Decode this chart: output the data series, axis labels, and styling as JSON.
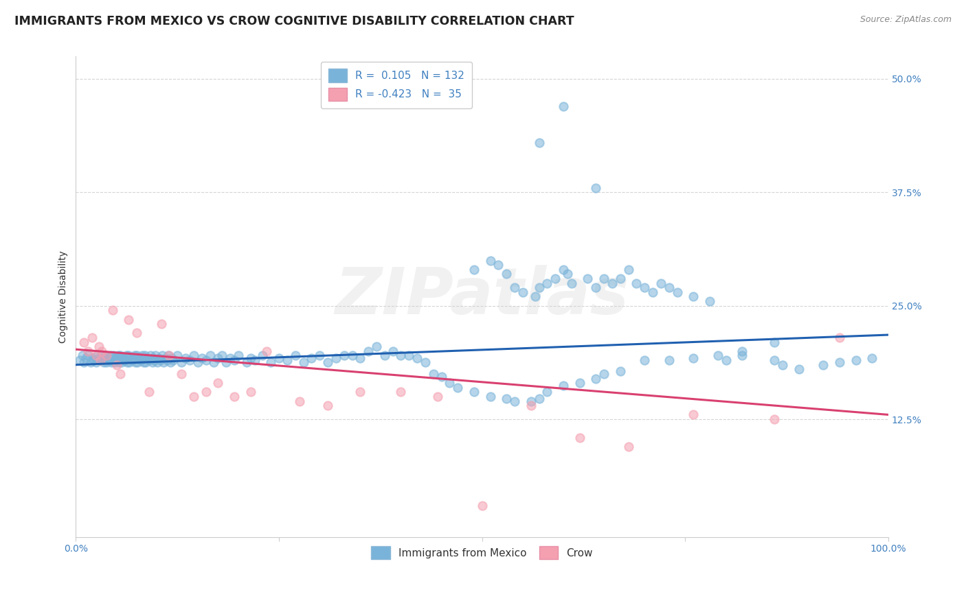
{
  "title": "IMMIGRANTS FROM MEXICO VS CROW COGNITIVE DISABILITY CORRELATION CHART",
  "source": "Source: ZipAtlas.com",
  "ylabel": "Cognitive Disability",
  "background_color": "#ffffff",
  "grid_color": "#d0d0d0",
  "watermark_text": "ZIPatlas",
  "dot_color_blue": "#7ab3d9",
  "dot_color_pink": "#f4a0b0",
  "line_color_blue": "#2060b0",
  "line_color_pink": "#d94070",
  "tick_color": "#4080c0",
  "xlim": [
    0.0,
    1.0
  ],
  "ylim": [
    -0.005,
    0.525
  ],
  "ytick_vals": [
    0.125,
    0.25,
    0.375,
    0.5
  ],
  "ytick_labels": [
    "12.5%",
    "25.0%",
    "37.5%",
    "50.0%"
  ],
  "xtick_vals": [
    0.0,
    0.25,
    0.5,
    0.75,
    1.0
  ],
  "xtick_labels": [
    "0.0%",
    "",
    "",
    "",
    "100.0%"
  ],
  "blue_line_x": [
    0.0,
    1.0
  ],
  "blue_line_y": [
    0.185,
    0.218
  ],
  "pink_line_x": [
    0.0,
    1.0
  ],
  "pink_line_y": [
    0.202,
    0.13
  ],
  "blue_scatter_x": [
    0.005,
    0.008,
    0.01,
    0.012,
    0.015,
    0.018,
    0.02,
    0.022,
    0.024,
    0.025,
    0.028,
    0.03,
    0.032,
    0.034,
    0.035,
    0.036,
    0.038,
    0.04,
    0.042,
    0.043,
    0.044,
    0.045,
    0.046,
    0.048,
    0.05,
    0.051,
    0.052,
    0.053,
    0.054,
    0.055,
    0.056,
    0.058,
    0.06,
    0.062,
    0.063,
    0.064,
    0.065,
    0.066,
    0.068,
    0.07,
    0.072,
    0.073,
    0.074,
    0.075,
    0.076,
    0.078,
    0.08,
    0.082,
    0.083,
    0.084,
    0.085,
    0.086,
    0.088,
    0.09,
    0.092,
    0.094,
    0.095,
    0.096,
    0.098,
    0.1,
    0.102,
    0.104,
    0.106,
    0.108,
    0.11,
    0.112,
    0.114,
    0.116,
    0.118,
    0.12,
    0.125,
    0.13,
    0.135,
    0.14,
    0.145,
    0.15,
    0.155,
    0.16,
    0.165,
    0.17,
    0.175,
    0.18,
    0.185,
    0.19,
    0.195,
    0.2,
    0.21,
    0.215,
    0.22,
    0.23,
    0.24,
    0.25,
    0.26,
    0.27,
    0.28,
    0.29,
    0.3,
    0.31,
    0.32,
    0.33,
    0.34,
    0.35,
    0.36,
    0.37,
    0.38,
    0.39,
    0.4,
    0.41,
    0.42,
    0.43,
    0.44,
    0.45,
    0.46,
    0.47,
    0.49,
    0.51,
    0.53,
    0.54,
    0.56,
    0.57,
    0.58,
    0.6,
    0.62,
    0.64,
    0.65,
    0.67,
    0.7,
    0.73,
    0.76,
    0.79,
    0.82,
    0.86
  ],
  "blue_scatter_y": [
    0.19,
    0.195,
    0.188,
    0.192,
    0.195,
    0.188,
    0.192,
    0.19,
    0.194,
    0.188,
    0.192,
    0.19,
    0.195,
    0.188,
    0.192,
    0.195,
    0.188,
    0.192,
    0.19,
    0.195,
    0.188,
    0.192,
    0.195,
    0.188,
    0.192,
    0.19,
    0.195,
    0.188,
    0.192,
    0.195,
    0.188,
    0.192,
    0.19,
    0.195,
    0.188,
    0.192,
    0.195,
    0.188,
    0.192,
    0.19,
    0.195,
    0.188,
    0.192,
    0.195,
    0.188,
    0.192,
    0.19,
    0.195,
    0.188,
    0.192,
    0.195,
    0.188,
    0.192,
    0.19,
    0.195,
    0.188,
    0.192,
    0.19,
    0.195,
    0.188,
    0.192,
    0.19,
    0.195,
    0.188,
    0.192,
    0.19,
    0.195,
    0.188,
    0.192,
    0.19,
    0.195,
    0.188,
    0.192,
    0.19,
    0.195,
    0.188,
    0.192,
    0.19,
    0.195,
    0.188,
    0.192,
    0.195,
    0.188,
    0.192,
    0.19,
    0.195,
    0.188,
    0.192,
    0.19,
    0.195,
    0.188,
    0.192,
    0.19,
    0.195,
    0.188,
    0.192,
    0.195,
    0.188,
    0.192,
    0.195,
    0.195,
    0.192,
    0.2,
    0.205,
    0.195,
    0.2,
    0.195,
    0.195,
    0.192,
    0.188,
    0.175,
    0.172,
    0.165,
    0.16,
    0.155,
    0.15,
    0.148,
    0.145,
    0.145,
    0.148,
    0.155,
    0.162,
    0.165,
    0.17,
    0.175,
    0.178,
    0.19,
    0.19,
    0.192,
    0.195,
    0.2,
    0.21
  ],
  "blue_scatter_x2": [
    0.49,
    0.51,
    0.52,
    0.53,
    0.54,
    0.55,
    0.565,
    0.57,
    0.58,
    0.59,
    0.6,
    0.605,
    0.61,
    0.63,
    0.64,
    0.65,
    0.66,
    0.67,
    0.68,
    0.69,
    0.7,
    0.71,
    0.72,
    0.73,
    0.74,
    0.76,
    0.78,
    0.8,
    0.82,
    0.86,
    0.87,
    0.89,
    0.92,
    0.94,
    0.96,
    0.98,
    0.57,
    0.6,
    0.64
  ],
  "blue_scatter_y2": [
    0.29,
    0.3,
    0.295,
    0.285,
    0.27,
    0.265,
    0.26,
    0.27,
    0.275,
    0.28,
    0.29,
    0.285,
    0.275,
    0.28,
    0.27,
    0.28,
    0.275,
    0.28,
    0.29,
    0.275,
    0.27,
    0.265,
    0.275,
    0.27,
    0.265,
    0.26,
    0.255,
    0.19,
    0.195,
    0.19,
    0.185,
    0.18,
    0.185,
    0.188,
    0.19,
    0.192,
    0.43,
    0.47,
    0.38
  ],
  "pink_scatter_x": [
    0.01,
    0.015,
    0.02,
    0.025,
    0.028,
    0.03,
    0.032,
    0.038,
    0.045,
    0.05,
    0.055,
    0.065,
    0.075,
    0.09,
    0.105,
    0.115,
    0.13,
    0.145,
    0.16,
    0.175,
    0.195,
    0.215,
    0.235,
    0.275,
    0.31,
    0.35,
    0.4,
    0.445,
    0.5,
    0.56,
    0.62,
    0.68,
    0.76,
    0.86,
    0.94
  ],
  "pink_scatter_y": [
    0.21,
    0.2,
    0.215,
    0.195,
    0.205,
    0.19,
    0.2,
    0.195,
    0.245,
    0.185,
    0.175,
    0.235,
    0.22,
    0.155,
    0.23,
    0.195,
    0.175,
    0.15,
    0.155,
    0.165,
    0.15,
    0.155,
    0.2,
    0.145,
    0.14,
    0.155,
    0.155,
    0.15,
    0.03,
    0.14,
    0.105,
    0.095,
    0.13,
    0.125,
    0.215
  ],
  "title_fontsize": 12.5,
  "axis_label_fontsize": 10,
  "tick_fontsize": 10,
  "legend_fontsize": 11
}
